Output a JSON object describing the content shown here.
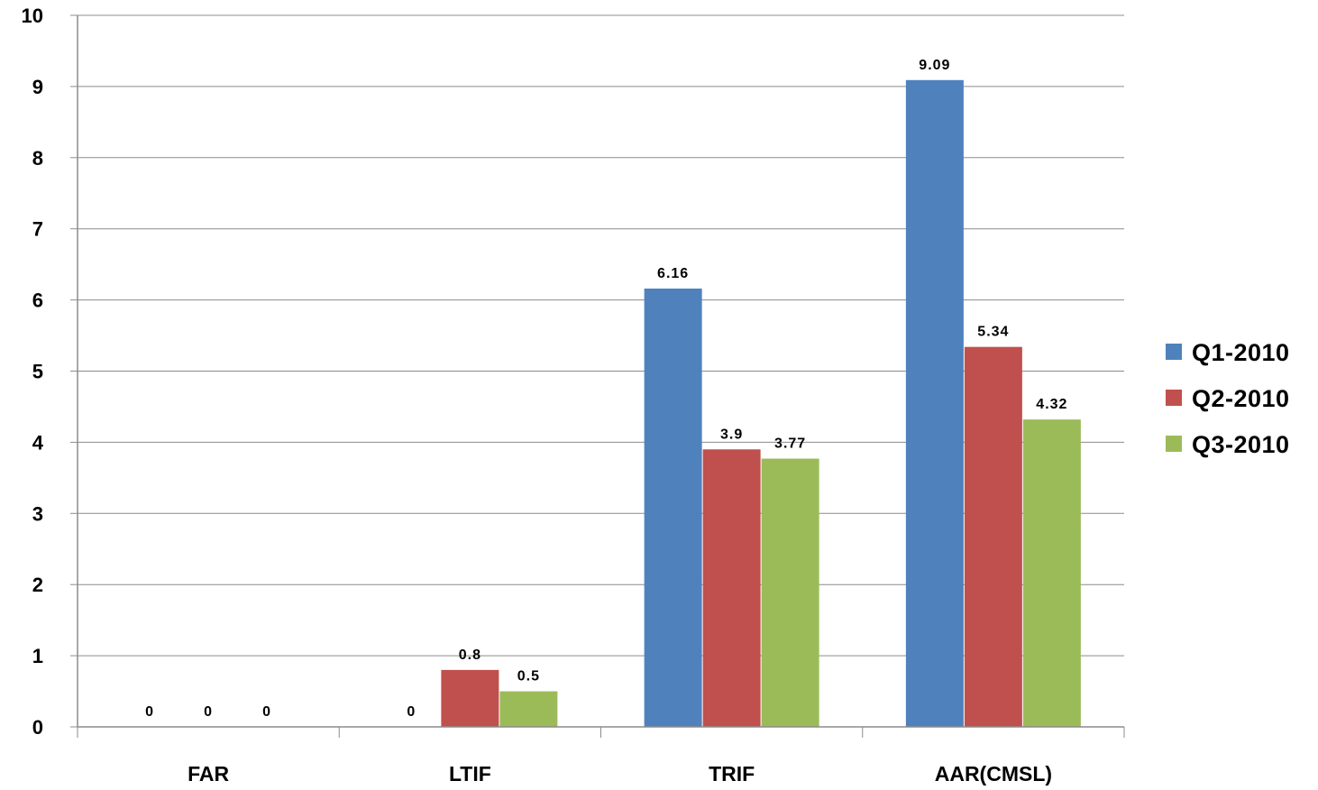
{
  "chart_data": {
    "type": "bar",
    "title": "",
    "xlabel": "",
    "ylabel": "",
    "ylim": [
      0,
      10
    ],
    "yticks": [
      0,
      1,
      2,
      3,
      4,
      5,
      6,
      7,
      8,
      9,
      10
    ],
    "ytick_labels": [
      "0",
      "1",
      "2",
      "3",
      "4",
      "5",
      "6",
      "7",
      "8",
      "9",
      "10"
    ],
    "grid": true,
    "legend_position": "right",
    "categories": [
      "FAR",
      "LTIF",
      "TRIF",
      "AAR(CMSL)"
    ],
    "series": [
      {
        "name": "Q1-2010",
        "color": "#4F81BD",
        "values": [
          0,
          0,
          6.16,
          9.09
        ],
        "labels": [
          "0",
          "0",
          "6.16",
          "9.09"
        ]
      },
      {
        "name": "Q2-2010",
        "color": "#C0504D",
        "values": [
          0,
          0.8,
          3.9,
          5.34
        ],
        "labels": [
          "0",
          "0.8",
          "3.9",
          "5.34"
        ]
      },
      {
        "name": "Q3-2010",
        "color": "#9BBB59",
        "values": [
          0,
          0.5,
          3.77,
          4.32
        ],
        "labels": [
          "0",
          "0.5",
          "3.77",
          "4.32"
        ]
      }
    ]
  }
}
